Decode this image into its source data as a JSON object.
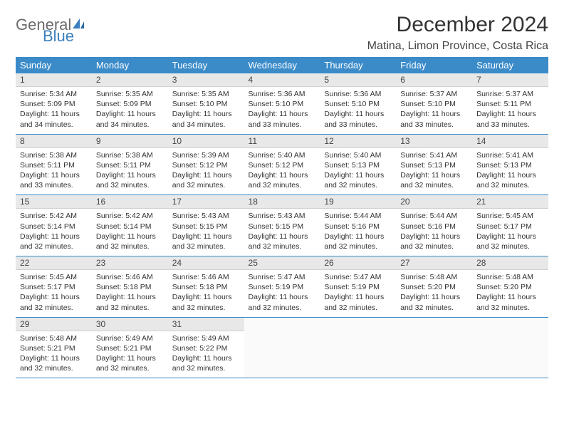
{
  "brand": {
    "line1a": "General",
    "line1b_icon": "sail",
    "line2": "Blue"
  },
  "title": "December 2024",
  "location": "Matina, Limon Province, Costa Rica",
  "colors": {
    "header_bg": "#3b8bc9",
    "header_text": "#ffffff",
    "daynum_bg": "#e8e8e8",
    "border": "#3b8bc9",
    "logo_gray": "#6b6b6b",
    "logo_blue": "#3b7fbf"
  },
  "weekdays": [
    "Sunday",
    "Monday",
    "Tuesday",
    "Wednesday",
    "Thursday",
    "Friday",
    "Saturday"
  ],
  "days": [
    {
      "n": 1,
      "sr": "5:34 AM",
      "ss": "5:09 PM",
      "dl": "11 hours and 34 minutes."
    },
    {
      "n": 2,
      "sr": "5:35 AM",
      "ss": "5:09 PM",
      "dl": "11 hours and 34 minutes."
    },
    {
      "n": 3,
      "sr": "5:35 AM",
      "ss": "5:10 PM",
      "dl": "11 hours and 34 minutes."
    },
    {
      "n": 4,
      "sr": "5:36 AM",
      "ss": "5:10 PM",
      "dl": "11 hours and 33 minutes."
    },
    {
      "n": 5,
      "sr": "5:36 AM",
      "ss": "5:10 PM",
      "dl": "11 hours and 33 minutes."
    },
    {
      "n": 6,
      "sr": "5:37 AM",
      "ss": "5:10 PM",
      "dl": "11 hours and 33 minutes."
    },
    {
      "n": 7,
      "sr": "5:37 AM",
      "ss": "5:11 PM",
      "dl": "11 hours and 33 minutes."
    },
    {
      "n": 8,
      "sr": "5:38 AM",
      "ss": "5:11 PM",
      "dl": "11 hours and 33 minutes."
    },
    {
      "n": 9,
      "sr": "5:38 AM",
      "ss": "5:11 PM",
      "dl": "11 hours and 32 minutes."
    },
    {
      "n": 10,
      "sr": "5:39 AM",
      "ss": "5:12 PM",
      "dl": "11 hours and 32 minutes."
    },
    {
      "n": 11,
      "sr": "5:40 AM",
      "ss": "5:12 PM",
      "dl": "11 hours and 32 minutes."
    },
    {
      "n": 12,
      "sr": "5:40 AM",
      "ss": "5:13 PM",
      "dl": "11 hours and 32 minutes."
    },
    {
      "n": 13,
      "sr": "5:41 AM",
      "ss": "5:13 PM",
      "dl": "11 hours and 32 minutes."
    },
    {
      "n": 14,
      "sr": "5:41 AM",
      "ss": "5:13 PM",
      "dl": "11 hours and 32 minutes."
    },
    {
      "n": 15,
      "sr": "5:42 AM",
      "ss": "5:14 PM",
      "dl": "11 hours and 32 minutes."
    },
    {
      "n": 16,
      "sr": "5:42 AM",
      "ss": "5:14 PM",
      "dl": "11 hours and 32 minutes."
    },
    {
      "n": 17,
      "sr": "5:43 AM",
      "ss": "5:15 PM",
      "dl": "11 hours and 32 minutes."
    },
    {
      "n": 18,
      "sr": "5:43 AM",
      "ss": "5:15 PM",
      "dl": "11 hours and 32 minutes."
    },
    {
      "n": 19,
      "sr": "5:44 AM",
      "ss": "5:16 PM",
      "dl": "11 hours and 32 minutes."
    },
    {
      "n": 20,
      "sr": "5:44 AM",
      "ss": "5:16 PM",
      "dl": "11 hours and 32 minutes."
    },
    {
      "n": 21,
      "sr": "5:45 AM",
      "ss": "5:17 PM",
      "dl": "11 hours and 32 minutes."
    },
    {
      "n": 22,
      "sr": "5:45 AM",
      "ss": "5:17 PM",
      "dl": "11 hours and 32 minutes."
    },
    {
      "n": 23,
      "sr": "5:46 AM",
      "ss": "5:18 PM",
      "dl": "11 hours and 32 minutes."
    },
    {
      "n": 24,
      "sr": "5:46 AM",
      "ss": "5:18 PM",
      "dl": "11 hours and 32 minutes."
    },
    {
      "n": 25,
      "sr": "5:47 AM",
      "ss": "5:19 PM",
      "dl": "11 hours and 32 minutes."
    },
    {
      "n": 26,
      "sr": "5:47 AM",
      "ss": "5:19 PM",
      "dl": "11 hours and 32 minutes."
    },
    {
      "n": 27,
      "sr": "5:48 AM",
      "ss": "5:20 PM",
      "dl": "11 hours and 32 minutes."
    },
    {
      "n": 28,
      "sr": "5:48 AM",
      "ss": "5:20 PM",
      "dl": "11 hours and 32 minutes."
    },
    {
      "n": 29,
      "sr": "5:48 AM",
      "ss": "5:21 PM",
      "dl": "11 hours and 32 minutes."
    },
    {
      "n": 30,
      "sr": "5:49 AM",
      "ss": "5:21 PM",
      "dl": "11 hours and 32 minutes."
    },
    {
      "n": 31,
      "sr": "5:49 AM",
      "ss": "5:22 PM",
      "dl": "11 hours and 32 minutes."
    }
  ],
  "labels": {
    "sunrise": "Sunrise:",
    "sunset": "Sunset:",
    "daylight": "Daylight:"
  }
}
